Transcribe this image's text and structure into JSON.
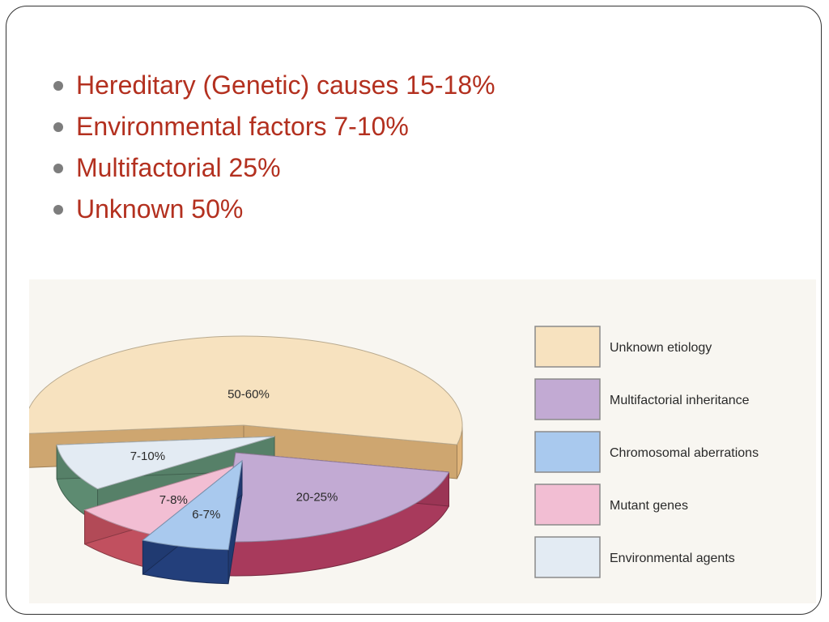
{
  "bullets": [
    "Hereditary (Genetic) causes 15-18%",
    "Environmental factors 7-10%",
    "Multifactorial 25%",
    "Unknown 50%"
  ],
  "chart_data": {
    "type": "pie",
    "style": "3d-exploded",
    "slices": [
      {
        "label": "Unknown etiology",
        "value_label": "50-60%",
        "value": 55,
        "color": "#f7e2bf",
        "side": "#e0b47a"
      },
      {
        "label": "Multifactorial inheritance",
        "value_label": "20-25%",
        "value": 22.5,
        "color": "#c2aad3",
        "side": "#a83a5c"
      },
      {
        "label": "Chromosomal aberrations",
        "value_label": "6-7%",
        "value": 6.5,
        "color": "#a9c9ee",
        "side": "#233f7b"
      },
      {
        "label": "Mutant genes",
        "value_label": "7-8%",
        "value": 7.5,
        "color": "#f2bed3",
        "side": "#c1505f"
      },
      {
        "label": "Environmental agents",
        "value_label": "7-10%",
        "value": 8.5,
        "color": "#e3ebf3",
        "side": "#5d8b71"
      }
    ],
    "legend": "right"
  }
}
